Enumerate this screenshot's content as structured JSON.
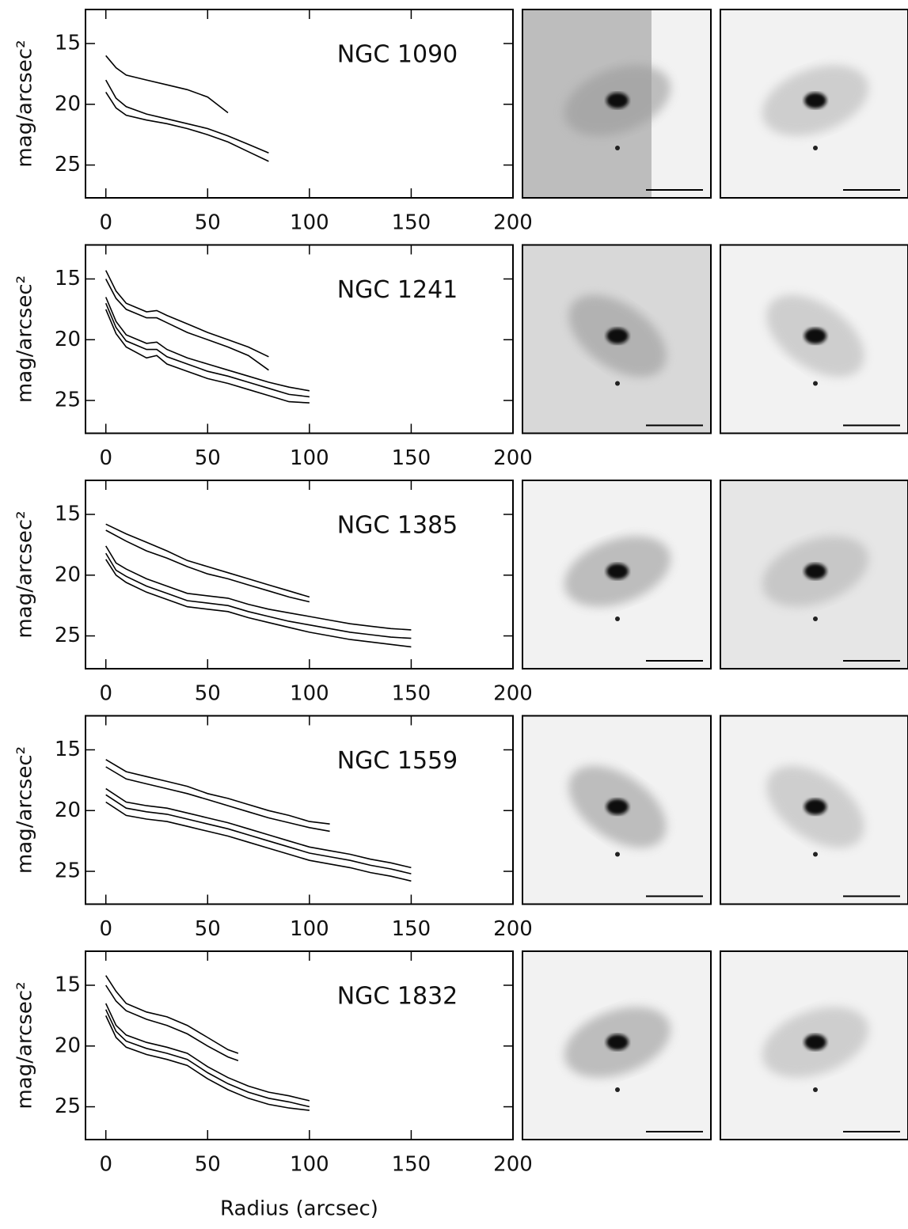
{
  "chart_data": [
    {
      "type": "line",
      "title": "NGC 1090",
      "ylabel": "mag/arcsec²",
      "inverted": true,
      "xlim": [
        -10,
        200
      ],
      "ylim": [
        27.7,
        12.2
      ],
      "xticks": [
        0,
        50,
        100,
        150,
        200
      ],
      "yticks": [
        15,
        20,
        25
      ],
      "series": [
        {
          "color": "#000000",
          "x": [
            0,
            5,
            10,
            20,
            30,
            40,
            50,
            60
          ],
          "values": [
            16,
            17,
            17.6,
            18,
            18.4,
            18.8,
            19.4,
            20.7
          ]
        },
        {
          "color": "#000000",
          "x": [
            0,
            5,
            10,
            20,
            30,
            40,
            50,
            60,
            70,
            80
          ],
          "values": [
            18,
            19.5,
            20.2,
            20.8,
            21.2,
            21.6,
            22,
            22.6,
            23.3,
            24
          ]
        },
        {
          "color": "#000000",
          "x": [
            0,
            5,
            10,
            20,
            30,
            40,
            50,
            60,
            70,
            80
          ],
          "values": [
            19,
            20.3,
            20.9,
            21.3,
            21.6,
            22,
            22.5,
            23.1,
            23.9,
            24.7
          ]
        }
      ]
    },
    {
      "type": "line",
      "title": "NGC 1241",
      "ylabel": "mag/arcsec²",
      "inverted": true,
      "xlim": [
        -10,
        200
      ],
      "ylim": [
        27.7,
        12.2
      ],
      "xticks": [
        0,
        50,
        100,
        150,
        200
      ],
      "yticks": [
        15,
        20,
        25
      ],
      "series": [
        {
          "color": "#000000",
          "x": [
            0,
            5,
            10,
            20,
            25,
            30,
            40,
            50,
            60,
            70,
            80
          ],
          "values": [
            14.3,
            16,
            17,
            17.7,
            17.6,
            18,
            18.7,
            19.4,
            20,
            20.6,
            21.4
          ]
        },
        {
          "color": "#000000",
          "x": [
            0,
            5,
            10,
            20,
            25,
            30,
            40,
            50,
            60,
            70,
            80
          ],
          "values": [
            15,
            16.6,
            17.5,
            18.2,
            18.2,
            18.6,
            19.4,
            20,
            20.6,
            21.3,
            22.5
          ]
        },
        {
          "color": "#000000",
          "x": [
            0,
            5,
            10,
            20,
            25,
            30,
            40,
            50,
            60,
            70,
            80,
            90,
            100
          ],
          "values": [
            16.5,
            18.5,
            19.6,
            20.3,
            20.2,
            20.8,
            21.5,
            22,
            22.5,
            23,
            23.5,
            23.9,
            24.2
          ]
        },
        {
          "color": "#000000",
          "x": [
            0,
            5,
            10,
            20,
            25,
            30,
            40,
            50,
            60,
            70,
            80,
            90,
            100
          ],
          "values": [
            17,
            19,
            20.1,
            20.8,
            20.8,
            21.4,
            22,
            22.6,
            23,
            23.5,
            24,
            24.5,
            24.7
          ]
        },
        {
          "color": "#000000",
          "x": [
            0,
            5,
            10,
            20,
            25,
            30,
            40,
            50,
            60,
            70,
            80,
            90,
            100
          ],
          "values": [
            17.5,
            19.5,
            20.6,
            21.5,
            21.3,
            22,
            22.6,
            23.2,
            23.6,
            24.1,
            24.6,
            25.1,
            25.2
          ]
        }
      ]
    },
    {
      "type": "line",
      "title": "NGC 1385",
      "ylabel": "mag/arcsec²",
      "inverted": true,
      "xlim": [
        -10,
        200
      ],
      "ylim": [
        27.7,
        12.2
      ],
      "xticks": [
        0,
        50,
        100,
        150,
        200
      ],
      "yticks": [
        15,
        20,
        25
      ],
      "series": [
        {
          "color": "#000000",
          "x": [
            0,
            10,
            20,
            30,
            40,
            50,
            60,
            70,
            80,
            90,
            100
          ],
          "values": [
            15.8,
            16.6,
            17.3,
            18,
            18.8,
            19.3,
            19.8,
            20.3,
            20.8,
            21.3,
            21.8
          ]
        },
        {
          "color": "#000000",
          "x": [
            0,
            10,
            20,
            30,
            40,
            50,
            60,
            70,
            80,
            90,
            100
          ],
          "values": [
            16.3,
            17.2,
            18,
            18.6,
            19.3,
            19.9,
            20.3,
            20.8,
            21.3,
            21.8,
            22.2
          ]
        },
        {
          "color": "#000000",
          "x": [
            0,
            5,
            10,
            20,
            30,
            40,
            50,
            60,
            70,
            80,
            90,
            100,
            110,
            120,
            130,
            140,
            150
          ],
          "values": [
            17.6,
            19,
            19.5,
            20.3,
            20.9,
            21.5,
            21.7,
            21.9,
            22.4,
            22.8,
            23.1,
            23.4,
            23.7,
            24,
            24.2,
            24.4,
            24.5
          ]
        },
        {
          "color": "#000000",
          "x": [
            0,
            5,
            10,
            20,
            30,
            40,
            50,
            60,
            70,
            80,
            90,
            100,
            110,
            120,
            130,
            140,
            150
          ],
          "values": [
            18.2,
            19.6,
            20.1,
            20.9,
            21.5,
            22.1,
            22.3,
            22.5,
            23,
            23.4,
            23.8,
            24.1,
            24.4,
            24.7,
            24.9,
            25.1,
            25.2
          ]
        },
        {
          "color": "#000000",
          "x": [
            0,
            5,
            10,
            20,
            30,
            40,
            50,
            60,
            70,
            80,
            90,
            100,
            110,
            120,
            130,
            140,
            150
          ],
          "values": [
            18.7,
            20,
            20.6,
            21.4,
            22,
            22.6,
            22.8,
            23,
            23.5,
            23.9,
            24.3,
            24.7,
            25,
            25.3,
            25.5,
            25.7,
            25.9
          ]
        }
      ]
    },
    {
      "type": "line",
      "title": "NGC 1559",
      "ylabel": "mag/arcsec²",
      "inverted": true,
      "xlim": [
        -10,
        200
      ],
      "ylim": [
        27.7,
        12.2
      ],
      "xticks": [
        0,
        50,
        100,
        150,
        200
      ],
      "yticks": [
        15,
        20,
        25
      ],
      "series": [
        {
          "color": "#000000",
          "x": [
            0,
            10,
            20,
            30,
            40,
            50,
            60,
            70,
            80,
            90,
            100,
            110
          ],
          "values": [
            15.8,
            16.8,
            17.2,
            17.6,
            18,
            18.6,
            19,
            19.5,
            20,
            20.4,
            20.9,
            21.1
          ]
        },
        {
          "color": "#000000",
          "x": [
            0,
            10,
            20,
            30,
            40,
            50,
            60,
            70,
            80,
            90,
            100,
            110
          ],
          "values": [
            16.4,
            17.4,
            17.8,
            18.2,
            18.6,
            19.1,
            19.6,
            20.1,
            20.6,
            21,
            21.4,
            21.7
          ]
        },
        {
          "color": "#000000",
          "x": [
            0,
            10,
            20,
            30,
            40,
            50,
            60,
            70,
            80,
            90,
            100,
            110,
            120,
            130,
            140,
            150
          ],
          "values": [
            18.2,
            19.3,
            19.6,
            19.8,
            20.2,
            20.6,
            21,
            21.5,
            22,
            22.5,
            23,
            23.3,
            23.6,
            24,
            24.3,
            24.7
          ]
        },
        {
          "color": "#000000",
          "x": [
            0,
            10,
            20,
            30,
            40,
            50,
            60,
            70,
            80,
            90,
            100,
            110,
            120,
            130,
            140,
            150
          ],
          "values": [
            18.7,
            19.8,
            20.1,
            20.3,
            20.7,
            21.1,
            21.5,
            22,
            22.5,
            23,
            23.5,
            23.8,
            24.1,
            24.5,
            24.8,
            25.2
          ]
        },
        {
          "color": "#000000",
          "x": [
            0,
            10,
            20,
            30,
            40,
            50,
            60,
            70,
            80,
            90,
            100,
            110,
            120,
            130,
            140,
            150
          ],
          "values": [
            19.3,
            20.4,
            20.7,
            20.9,
            21.3,
            21.7,
            22.1,
            22.6,
            23.1,
            23.6,
            24.1,
            24.4,
            24.7,
            25.1,
            25.4,
            25.8
          ]
        }
      ]
    },
    {
      "type": "line",
      "title": "NGC 1832",
      "ylabel": "mag/arcsec²",
      "xlabel": "Radius (arcsec)",
      "inverted": true,
      "xlim": [
        -10,
        200
      ],
      "ylim": [
        27.7,
        12.2
      ],
      "xticks": [
        0,
        50,
        100,
        150,
        200
      ],
      "yticks": [
        15,
        20,
        25
      ],
      "series": [
        {
          "color": "#000000",
          "x": [
            0,
            5,
            10,
            20,
            30,
            40,
            50,
            60,
            65
          ],
          "values": [
            14.2,
            15.5,
            16.5,
            17.2,
            17.6,
            18.3,
            19.3,
            20.3,
            20.6
          ]
        },
        {
          "color": "#000000",
          "x": [
            0,
            5,
            10,
            20,
            30,
            40,
            50,
            60,
            65
          ],
          "values": [
            15,
            16.3,
            17.1,
            17.8,
            18.3,
            19,
            20,
            20.9,
            21.2
          ]
        },
        {
          "color": "#000000",
          "x": [
            0,
            5,
            10,
            20,
            30,
            40,
            50,
            60,
            70,
            80,
            90,
            100
          ],
          "values": [
            16.5,
            18.3,
            19.1,
            19.7,
            20.1,
            20.6,
            21.7,
            22.6,
            23.3,
            23.8,
            24.1,
            24.5
          ]
        },
        {
          "color": "#000000",
          "x": [
            0,
            5,
            10,
            20,
            30,
            40,
            50,
            60,
            70,
            80,
            90,
            100
          ],
          "values": [
            17,
            18.8,
            19.6,
            20.2,
            20.6,
            21.1,
            22.2,
            23.1,
            23.8,
            24.3,
            24.6,
            25
          ]
        },
        {
          "color": "#000000",
          "x": [
            0,
            5,
            10,
            20,
            30,
            40,
            50,
            60,
            70,
            80,
            90,
            100
          ],
          "values": [
            17.5,
            19.3,
            20.1,
            20.7,
            21.1,
            21.6,
            22.7,
            23.6,
            24.3,
            24.8,
            25.1,
            25.3
          ]
        }
      ]
    }
  ]
}
